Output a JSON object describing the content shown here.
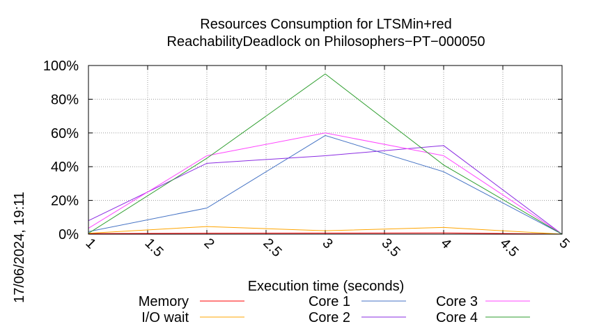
{
  "chart_data": {
    "type": "line",
    "title": [
      "Resources Consumption for LTSMin+red",
      "ReachabilityDeadlock on Philosophers−PT−000050"
    ],
    "xlabel": "Execution time (seconds)",
    "ylabel": "",
    "xlim": [
      1,
      5
    ],
    "ylim": [
      0,
      100
    ],
    "x_ticks": [
      "1",
      "1.5",
      "2",
      "2.5",
      "3",
      "3.5",
      "4",
      "4.5",
      "5"
    ],
    "y_ticks": [
      "0%",
      "20%",
      "40%",
      "60%",
      "80%",
      "100%"
    ],
    "grid": true,
    "legend_position": "bottom",
    "timestamp": "17/06/2024, 19:11",
    "x": [
      1,
      2,
      3,
      4,
      5
    ],
    "series": [
      {
        "name": "Memory",
        "color": "#ff0000",
        "values": [
          0.3,
          0.5,
          0.6,
          0.7,
          0
        ]
      },
      {
        "name": "I/O wait",
        "color": "#ffa500",
        "values": [
          0.5,
          4.5,
          2,
          4,
          0
        ]
      },
      {
        "name": "Core 1",
        "color": "#4472c4",
        "values": [
          1.5,
          15.5,
          58.5,
          37,
          0
        ]
      },
      {
        "name": "Core 2",
        "color": "#8a2be2",
        "values": [
          8,
          42,
          46.5,
          52.5,
          0
        ]
      },
      {
        "name": "Core 3",
        "color": "#ff44ff",
        "values": [
          3.5,
          46.5,
          60,
          46.5,
          0
        ]
      },
      {
        "name": "Core 4",
        "color": "#2e9e2e",
        "values": [
          0.5,
          45,
          95,
          41,
          0
        ]
      }
    ]
  }
}
